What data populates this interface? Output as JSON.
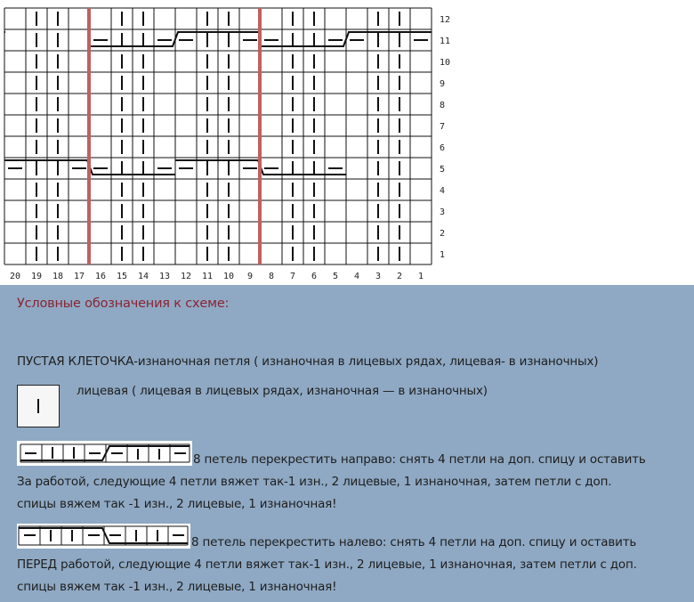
{
  "chart": {
    "rows_top_to_bottom": [
      ".||..||..||..||..||.",
      ".||.-||--||--||--||-",
      ".||..||..||..||..||.",
      ".||..||..||..||..||.",
      ".||..||..||..||..||.",
      ".||..||..||..||..||.",
      ".||..||..||..||..||.",
      "-||--||--||--||-.||.",
      ".||..||..||..||..||.",
      ".||..||..||..||..||.",
      ".||..||..||..||..||.",
      ".||..||..||..||..||."
    ],
    "row_labels": [
      "12",
      "11",
      "10",
      "9",
      "8",
      "7",
      "6",
      "5",
      "4",
      "3",
      "2",
      "1"
    ],
    "column_labels": [
      "20",
      "19",
      "18",
      "17",
      "16",
      "15",
      "14",
      "13",
      "12",
      "11",
      "10",
      "9",
      "8",
      "7",
      "6",
      "5",
      "4",
      "3",
      "2",
      "1"
    ],
    "repeat_marker_color": "#c0605f"
  },
  "legend": {
    "title": "Условные обозначения к схеме:",
    "empty_cell": "ПУСТАЯ КЛЕТОЧКА-изнаночная петля ( изнаночная в лицевых рядах, лицевая- в изнаночных)",
    "knit": "лицевая ( лицевая в лицевых рядах, изнаночная — в изнаночных)",
    "cable_right": [
      "8 петель перекрестить направо: снять 4 петли на доп. спицу и оставить",
      "За работой, следующие 4 петли вяжет так-1 изн., 2 лицевые, 1 изнаночная, затем петли с доп.",
      "спицы вяжем так -1 изн., 2 лицевые, 1 изнаночная!"
    ],
    "cable_left": [
      "8 петель перекрестить налево: снять 4 петли на доп. спицу и оставить",
      "ПЕРЕД работой, следующие 4 петли вяжет так-1 изн., 2 лицевые, 1 изнаночная, затем петли с доп.",
      "спицы вяжем так -1 изн., 2 лицевые, 1 изнаночная!"
    ]
  }
}
